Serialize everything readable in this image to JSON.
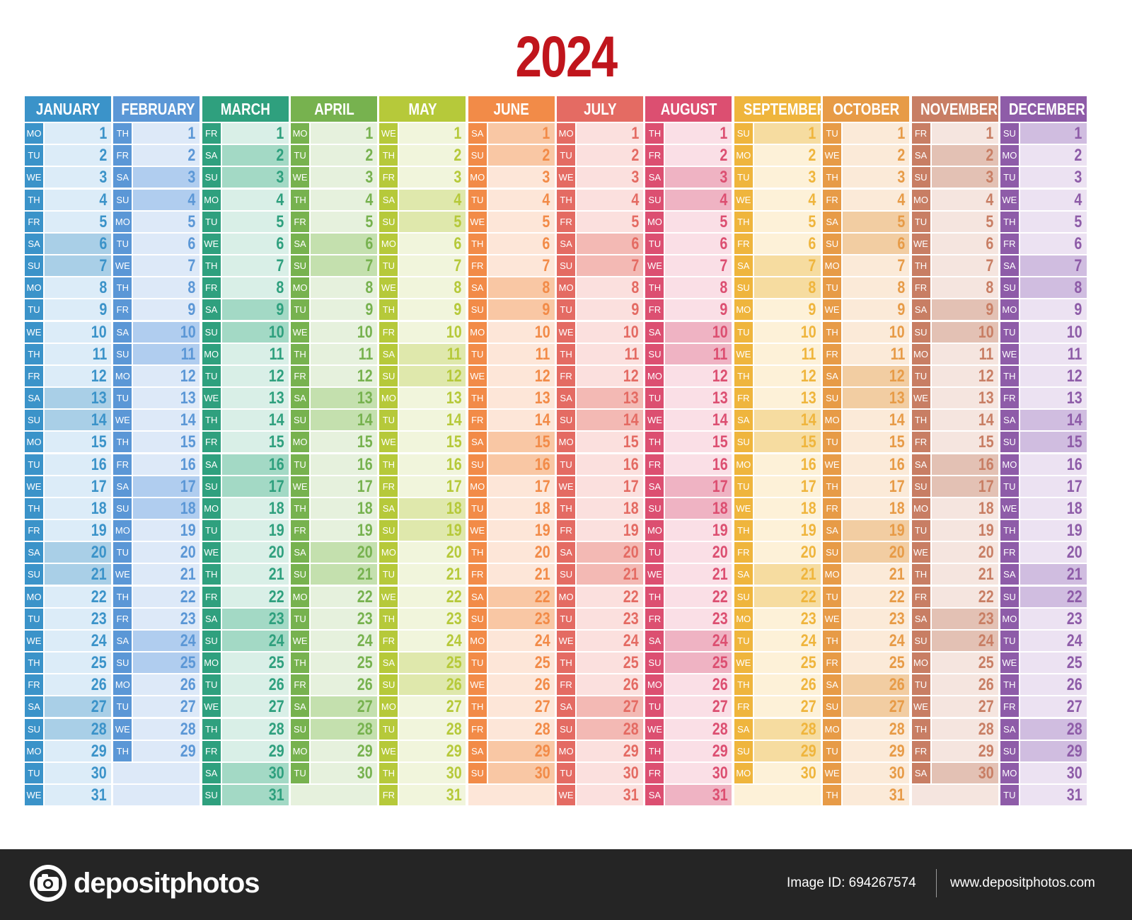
{
  "title": "2024",
  "weekday_abbrevs": [
    "MO",
    "TU",
    "WE",
    "TH",
    "FR",
    "SA",
    "SU"
  ],
  "months": [
    {
      "name": "JANUARY",
      "days": 31,
      "start_weekday": "MO",
      "color": "#3b93c9",
      "light": "#dcecf8",
      "weekend": "#a9cfe7"
    },
    {
      "name": "FEBRUARY",
      "days": 29,
      "start_weekday": "TH",
      "color": "#5b97d6",
      "light": "#dde9f8",
      "weekend": "#b0cdef"
    },
    {
      "name": "MARCH",
      "days": 31,
      "start_weekday": "FR",
      "color": "#2fa07e",
      "light": "#d9efe7",
      "weekend": "#a3d9c5"
    },
    {
      "name": "APRIL",
      "days": 30,
      "start_weekday": "MO",
      "color": "#77b24f",
      "light": "#e6f1dd",
      "weekend": "#c4e0ae"
    },
    {
      "name": "MAY",
      "days": 31,
      "start_weekday": "WE",
      "color": "#b6c93a",
      "light": "#f1f5dc",
      "weekend": "#dfe8ac"
    },
    {
      "name": "JUNE",
      "days": 30,
      "start_weekday": "SA",
      "color": "#f28b48",
      "light": "#fde6d8",
      "weekend": "#f9c7a4"
    },
    {
      "name": "JULY",
      "days": 31,
      "start_weekday": "MO",
      "color": "#e46b63",
      "light": "#fbe0de",
      "weekend": "#f3b9b4"
    },
    {
      "name": "AUGUST",
      "days": 31,
      "start_weekday": "TH",
      "color": "#dc4f71",
      "light": "#fadfe6",
      "weekend": "#efb3c3"
    },
    {
      "name": "SEPTEMBER",
      "days": 30,
      "start_weekday": "SU",
      "color": "#efb53d",
      "light": "#fdf1d8",
      "weekend": "#f6dca0"
    },
    {
      "name": "OCTOBER",
      "days": 31,
      "start_weekday": "TU",
      "color": "#e79b47",
      "light": "#fbead8",
      "weekend": "#f2cda2"
    },
    {
      "name": "NOVEMBER",
      "days": 30,
      "start_weekday": "FR",
      "color": "#c87e64",
      "light": "#f5e5df",
      "weekend": "#e3c1b4"
    },
    {
      "name": "DECEMBER",
      "days": 31,
      "start_weekday": "SU",
      "color": "#8e5ca8",
      "light": "#ece2f2",
      "weekend": "#d0bde0"
    }
  ],
  "footer": {
    "brand": "depositphotos",
    "image_id": "Image ID: 694267574",
    "site": "www.depositphotos.com"
  },
  "colors": {
    "title": "#c0151c",
    "footer_bg": "#252525",
    "footer_text": "#ffffff"
  }
}
